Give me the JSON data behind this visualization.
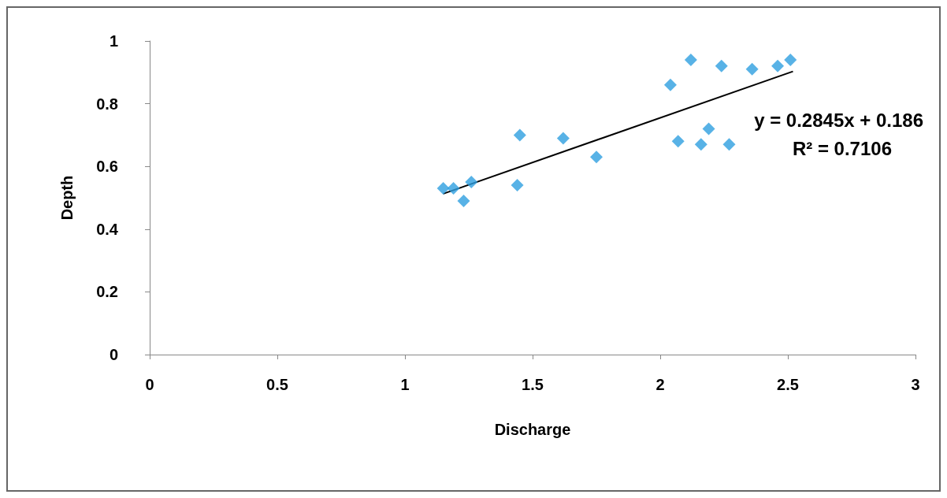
{
  "chart_data": {
    "type": "scatter",
    "xlabel": "Discharge",
    "ylabel": "Depth",
    "xlim": [
      0,
      3
    ],
    "xticks": [
      0,
      0.5,
      1,
      1.5,
      2,
      2.5,
      3
    ],
    "ylim": [
      0,
      1
    ],
    "yticks": [
      0,
      0.2,
      0.4,
      0.6,
      0.8,
      1
    ],
    "grid": false,
    "marker": "diamond",
    "series": [
      {
        "color": "#2e9fe0",
        "x": [
          1.15,
          1.19,
          1.23,
          1.26,
          1.44,
          1.45,
          1.62,
          1.75,
          2.04,
          2.07,
          2.12,
          2.16,
          2.19,
          2.24,
          2.27,
          2.36,
          2.46,
          2.51
        ],
        "values": [
          0.53,
          0.53,
          0.49,
          0.55,
          0.54,
          0.7,
          0.69,
          0.63,
          0.86,
          0.68,
          0.94,
          0.67,
          0.72,
          0.92,
          0.67,
          0.91,
          0.92,
          0.94
        ]
      },
      {
        "type": "line",
        "color": "#000000",
        "x": [
          1.15,
          2.52
        ],
        "values": [
          0.513,
          0.903
        ],
        "line_style": "solid",
        "marker": "none"
      }
    ],
    "annotations": [
      "y = 0.2845x + 0.186",
      "R² = 0.7106"
    ]
  }
}
